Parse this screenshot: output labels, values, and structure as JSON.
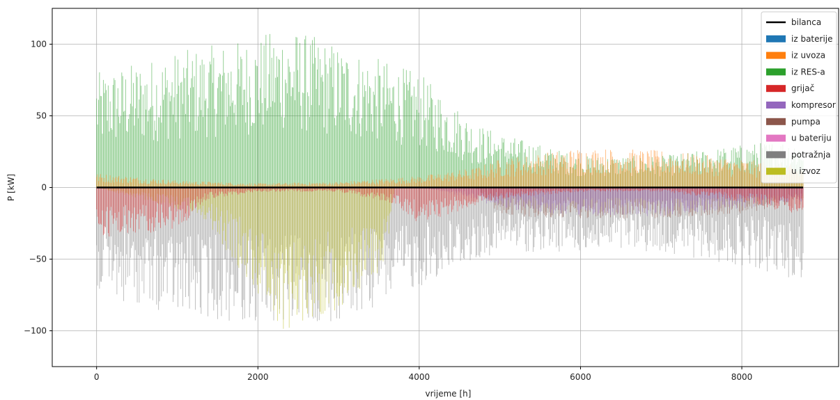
{
  "chart_data": {
    "type": "area",
    "title": "",
    "xlabel": "vrijeme [h]",
    "ylabel": "P [kW]",
    "xlim": [
      -550,
      9200
    ],
    "ylim": [
      -125,
      125
    ],
    "x_ticks": [
      0,
      2000,
      4000,
      6000,
      8000
    ],
    "x_tick_labels": [
      "0",
      "2000",
      "4000",
      "6000",
      "8000"
    ],
    "y_ticks": [
      -100,
      -50,
      0,
      50,
      100
    ],
    "y_tick_labels": [
      "−100",
      "−50",
      "0",
      "50",
      "100"
    ],
    "grid": true,
    "legend_position": "top-right",
    "x_range": [
      0,
      8760
    ],
    "series": [
      {
        "name": "bilanca",
        "color": "#000000",
        "kind": "line",
        "x": [
          0,
          8760
        ],
        "values": [
          0,
          0
        ]
      },
      {
        "name": "iz baterije",
        "color": "#1f77b4",
        "kind": "band",
        "sign": "positive",
        "x": [
          0,
          8760
        ],
        "values": [
          0,
          0
        ]
      },
      {
        "name": "iz uvoza",
        "color": "#ff7f0e",
        "kind": "band",
        "sign": "positive",
        "x": [
          0,
          1000,
          2000,
          3000,
          4000,
          4700,
          5000,
          6000,
          7000,
          8000,
          8760
        ],
        "values": [
          10,
          5,
          3,
          4,
          8,
          14,
          20,
          28,
          26,
          20,
          15
        ]
      },
      {
        "name": "iz RES-a",
        "color": "#2ca02c",
        "kind": "band",
        "sign": "positive",
        "x": [
          0,
          1000,
          2000,
          2300,
          3000,
          4000,
          4700,
          5000,
          6000,
          7000,
          8000,
          8760
        ],
        "values": [
          80,
          95,
          105,
          113,
          100,
          80,
          45,
          38,
          22,
          22,
          30,
          35
        ]
      },
      {
        "name": "grijač",
        "color": "#d62728",
        "kind": "band",
        "sign": "negative",
        "x": [
          0,
          1000,
          1400,
          2000,
          3000,
          3600,
          4000,
          5000,
          6000,
          7000,
          8000,
          8760
        ],
        "values": [
          -35,
          -30,
          -8,
          -3,
          -3,
          -10,
          -25,
          -8,
          -3,
          -3,
          -10,
          -20
        ]
      },
      {
        "name": "kompresor",
        "color": "#9467bd",
        "kind": "band",
        "sign": "negative",
        "x": [
          0,
          4000,
          4700,
          5000,
          6000,
          7000,
          8000,
          8760
        ],
        "values": [
          0,
          0,
          -8,
          -15,
          -20,
          -20,
          -15,
          -10
        ]
      },
      {
        "name": "pumpa",
        "color": "#8c564b",
        "kind": "band",
        "sign": "negative",
        "x": [
          0,
          4700,
          5000,
          6000,
          7000,
          8000,
          8760
        ],
        "values": [
          0,
          0,
          -20,
          -22,
          -22,
          -18,
          -12
        ]
      },
      {
        "name": "u bateriju",
        "color": "#e377c2",
        "kind": "band",
        "sign": "negative",
        "x": [
          0,
          8760
        ],
        "values": [
          0,
          0
        ]
      },
      {
        "name": "potražnja",
        "color": "#7f7f7f",
        "kind": "band",
        "sign": "negative",
        "x": [
          0,
          1000,
          2000,
          3000,
          4000,
          5000,
          6000,
          7000,
          8000,
          8760
        ],
        "values": [
          -75,
          -90,
          -95,
          -95,
          -70,
          -45,
          -45,
          -45,
          -55,
          -65
        ]
      },
      {
        "name": "u izvoz",
        "color": "#bcbd22",
        "kind": "band",
        "sign": "negative",
        "x": [
          0,
          1300,
          2000,
          2300,
          3000,
          3600,
          3700,
          8760
        ],
        "values": [
          0,
          -20,
          -75,
          -100,
          -85,
          -55,
          0,
          0
        ]
      }
    ]
  }
}
